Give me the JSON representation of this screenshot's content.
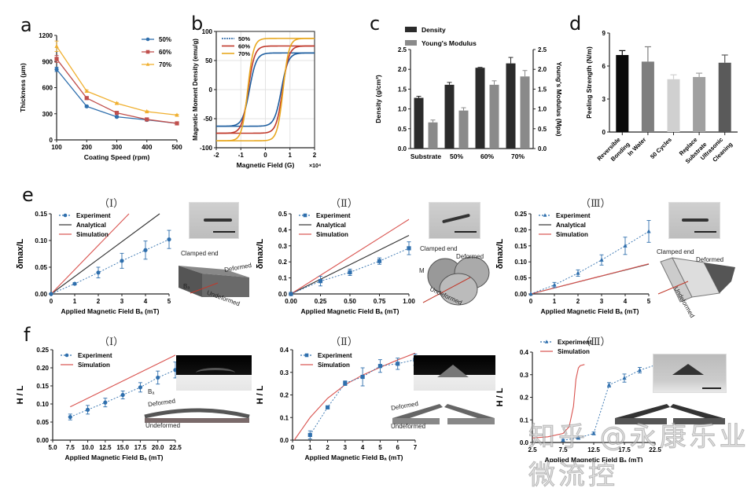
{
  "panel_labels": {
    "a": "a",
    "b": "b",
    "c": "c",
    "d": "d",
    "e": "e",
    "f": "f"
  },
  "roman": {
    "I": "（Ⅰ）",
    "II": "（Ⅱ）",
    "III": "（Ⅲ）"
  },
  "watermark": "知乎 @永康乐业微流控",
  "insets": {
    "clamped_end": "Clamped end",
    "deformed": "Deformed",
    "undeformed": "Undeformed",
    "M": "M",
    "Ba": "Bₐ",
    "delta_max": "δmax",
    "H": "H",
    "L": "L"
  },
  "chart_data": [
    {
      "id": "a",
      "type": "line",
      "title": "",
      "xlabel": "Coating Speed (rpm)",
      "ylabel": "Thickness (μm)",
      "x": [
        100,
        200,
        300,
        400,
        500
      ],
      "xlim": [
        100,
        500
      ],
      "ylim": [
        0,
        1200
      ],
      "yticks": [
        0,
        300,
        600,
        900,
        1200
      ],
      "xticks": [
        100,
        200,
        300,
        400,
        500
      ],
      "legend": "top-right",
      "series": [
        {
          "name": "50%",
          "color": "#2f6fad",
          "marker": "circle",
          "values": [
            810,
            385,
            265,
            230,
            190
          ],
          "err": [
            25,
            10,
            10,
            10,
            8
          ]
        },
        {
          "name": "60%",
          "color": "#c0504d",
          "marker": "square",
          "values": [
            930,
            480,
            310,
            235,
            190
          ],
          "err": [
            40,
            12,
            10,
            8,
            8
          ]
        },
        {
          "name": "70%",
          "color": "#f0b030",
          "marker": "triangle",
          "values": [
            1075,
            560,
            420,
            325,
            285
          ],
          "err": [
            60,
            12,
            10,
            8,
            8
          ]
        }
      ]
    },
    {
      "id": "b",
      "type": "line",
      "xlabel": "Magnetic Field (G)",
      "xexp": "×10⁴",
      "ylabel": "Magnetic Moment Density (emu/g)",
      "xlim": [
        -2,
        2
      ],
      "ylim": [
        -100,
        100
      ],
      "xticks": [
        -2,
        -1,
        0,
        1,
        2
      ],
      "yticks": [
        -100,
        -50,
        0,
        50,
        100
      ],
      "grid": true,
      "legend": "top-left",
      "series": [
        {
          "name": "50%",
          "color": "#1f5fa0",
          "Ms": 63,
          "Hc": 0.65,
          "w": 0.28
        },
        {
          "name": "60%",
          "color": "#c0392b",
          "Ms": 75,
          "Hc": 0.7,
          "w": 0.26
        },
        {
          "name": "70%",
          "color": "#e8a820",
          "Ms": 88,
          "Hc": 0.72,
          "w": 0.24
        }
      ]
    },
    {
      "id": "c",
      "type": "bar",
      "categories": [
        "Substrate",
        "50%",
        "60%",
        "70%"
      ],
      "ylabel": "Density (g/cm³)",
      "y2label": "Young's Modulus (Mpa)",
      "ylim": [
        0,
        2.5
      ],
      "yticks": [
        0.0,
        0.5,
        1.0,
        1.5,
        2.0,
        2.5
      ],
      "legend": "top-left",
      "series": [
        {
          "name": "Density",
          "color": "#2b2b2b",
          "values": [
            1.28,
            1.61,
            2.04,
            2.15
          ],
          "err": [
            0.04,
            0.06,
            0.01,
            0.15
          ]
        },
        {
          "name": "Young's Modulus",
          "color": "#8a8a8a",
          "values": [
            0.66,
            0.96,
            1.61,
            1.82
          ],
          "err": [
            0.06,
            0.07,
            0.1,
            0.15
          ]
        }
      ]
    },
    {
      "id": "d",
      "type": "bar",
      "categories": [
        "Reversible Bonding",
        "In Water",
        "50 Cycles",
        "Replace Substrate",
        "Ultrasonic Cleaning"
      ],
      "category_lines": [
        [
          "Reversible",
          "Bonding"
        ],
        [
          "In Water"
        ],
        [
          "50 Cycles"
        ],
        [
          "Replace",
          "Substrate"
        ],
        [
          "Ultrasonic",
          "Cleaning"
        ]
      ],
      "ylabel": "Peeling Strength (N/m)",
      "ylim": [
        0,
        9
      ],
      "yticks": [
        0,
        3,
        6,
        9
      ],
      "values": [
        7.0,
        6.4,
        4.8,
        5.0,
        6.3
      ],
      "err": [
        0.4,
        1.35,
        0.4,
        0.35,
        0.7
      ],
      "colors": [
        "#0a0a0a",
        "#7e7e7e",
        "#d0d0d0",
        "#a0a0a0",
        "#5a5a5a"
      ]
    },
    {
      "id": "e1",
      "type": "line",
      "xlabel": "Applied Magnetic Field Bₐ (mT)",
      "ylabel": "δmax/L",
      "xlim": [
        0,
        5
      ],
      "ylim": [
        0,
        0.15
      ],
      "xticks": [
        0,
        1,
        2,
        3,
        4,
        5
      ],
      "yticks": [
        0.0,
        0.05,
        0.1,
        0.15
      ],
      "ytick_fmt": 2,
      "legend": "top-left",
      "series": [
        {
          "name": "Experiment",
          "kind": "exp",
          "marker": "circle",
          "color": "#2f6fad",
          "x": [
            0,
            1,
            2,
            3,
            4,
            5
          ],
          "values": [
            0.0,
            0.019,
            0.04,
            0.062,
            0.082,
            0.102
          ],
          "err": [
            0,
            0.002,
            0.01,
            0.014,
            0.017,
            0.017
          ]
        },
        {
          "name": "Analytical",
          "kind": "line",
          "color": "#333333",
          "x": [
            0,
            4.6
          ],
          "values": [
            0,
            0.15
          ]
        },
        {
          "name": "Simulation",
          "kind": "line",
          "color": "#d9534f",
          "x": [
            0,
            3.3
          ],
          "values": [
            0,
            0.15
          ]
        }
      ]
    },
    {
      "id": "e2",
      "type": "line",
      "xlabel": "Applied Magnetic Field Bₐ (mT)",
      "ylabel": "δmax/L",
      "xlim": [
        0,
        1
      ],
      "ylim": [
        0,
        0.5
      ],
      "xticks": [
        0,
        0.25,
        0.5,
        0.75,
        1.0
      ],
      "xtick_fmt": 2,
      "yticks": [
        0.0,
        0.1,
        0.2,
        0.3,
        0.4,
        0.5
      ],
      "ytick_fmt": 1,
      "legend": "top-left",
      "series": [
        {
          "name": "Experiment",
          "kind": "exp",
          "marker": "square",
          "color": "#2f6fad",
          "x": [
            0,
            0.25,
            0.5,
            0.75,
            1.0
          ],
          "values": [
            0.0,
            0.08,
            0.135,
            0.205,
            0.285
          ],
          "err": [
            0,
            0.03,
            0.02,
            0.02,
            0.04
          ]
        },
        {
          "name": "Analytical",
          "kind": "line",
          "color": "#333333",
          "x": [
            0,
            1.0
          ],
          "values": [
            0,
            0.365
          ]
        },
        {
          "name": "Simulation",
          "kind": "line",
          "color": "#d9534f",
          "x": [
            0,
            1.0
          ],
          "values": [
            0,
            0.465
          ]
        }
      ]
    },
    {
      "id": "e3",
      "type": "line",
      "xlabel": "Applied Magnetic Field Bₐ (mT)",
      "ylabel": "δmax/L",
      "xlim": [
        0,
        5
      ],
      "ylim": [
        0,
        0.25
      ],
      "xticks": [
        0,
        1,
        2,
        3,
        4,
        5
      ],
      "yticks": [
        0.0,
        0.05,
        0.1,
        0.15,
        0.2,
        0.25
      ],
      "ytick_fmt": 2,
      "legend": "top-left",
      "series": [
        {
          "name": "Experiment",
          "kind": "exp",
          "marker": "triangle",
          "color": "#2f6fad",
          "x": [
            0,
            1,
            2,
            3,
            4,
            5
          ],
          "values": [
            0.0,
            0.028,
            0.065,
            0.106,
            0.15,
            0.195
          ],
          "err": [
            0,
            0.008,
            0.01,
            0.016,
            0.027,
            0.034
          ]
        },
        {
          "name": "Analytical",
          "kind": "line",
          "color": "#333333",
          "x": [
            0,
            5
          ],
          "values": [
            0,
            0.093
          ]
        },
        {
          "name": "Simulation",
          "kind": "line",
          "color": "#d9534f",
          "x": [
            0,
            5
          ],
          "values": [
            0,
            0.094
          ]
        }
      ]
    },
    {
      "id": "f1",
      "type": "line",
      "xlabel": "Applied Magnetic Field Bₐ (mT)",
      "ylabel": "H / L",
      "xlim": [
        5,
        22.5
      ],
      "ylim": [
        0,
        0.25
      ],
      "xticks": [
        5.0,
        7.5,
        10.0,
        12.5,
        15.0,
        17.5,
        20.0,
        22.5
      ],
      "xtick_fmt": 1,
      "yticks": [
        0.0,
        0.05,
        0.1,
        0.15,
        0.2,
        0.25
      ],
      "ytick_fmt": 2,
      "legend": "top-left",
      "series": [
        {
          "name": "Experiment",
          "kind": "exp",
          "marker": "circle",
          "color": "#2f6fad",
          "x": [
            7.5,
            10,
            12.5,
            15,
            17.5,
            20,
            22.5
          ],
          "values": [
            0.064,
            0.084,
            0.104,
            0.125,
            0.146,
            0.173,
            0.194
          ],
          "err": [
            0.008,
            0.012,
            0.012,
            0.011,
            0.013,
            0.018,
            0.022
          ]
        },
        {
          "name": "Simulation",
          "kind": "line",
          "color": "#d9534f",
          "x": [
            7.5,
            22.5
          ],
          "values": [
            0.092,
            0.235
          ]
        }
      ]
    },
    {
      "id": "f2",
      "type": "line",
      "xlabel": "Applied Magnetic Field Bₐ (mT)",
      "ylabel": "H / L",
      "xlim": [
        0,
        7
      ],
      "ylim": [
        0,
        0.4
      ],
      "xticks": [
        0,
        1,
        2,
        3,
        4,
        5,
        6,
        7
      ],
      "yticks": [
        0.0,
        0.1,
        0.2,
        0.3,
        0.4
      ],
      "ytick_fmt": 1,
      "legend": "top-left",
      "series": [
        {
          "name": "Experiment",
          "kind": "exp",
          "marker": "square",
          "color": "#2f6fad",
          "x": [
            1,
            2,
            3,
            4,
            5,
            6,
            7
          ],
          "values": [
            0.023,
            0.145,
            0.252,
            0.28,
            0.328,
            0.338,
            0.356
          ],
          "err": [
            0.018,
            0.005,
            0.01,
            0.04,
            0.028,
            0.025,
            0.025
          ]
        },
        {
          "name": "Simulation",
          "kind": "curve",
          "color": "#d9534f",
          "x": [
            0.1,
            1,
            2,
            3,
            4,
            5,
            6,
            7
          ],
          "values": [
            0.0,
            0.1,
            0.185,
            0.245,
            0.288,
            0.322,
            0.355,
            0.385
          ]
        }
      ]
    },
    {
      "id": "f3",
      "type": "line",
      "xlabel": "Applied Magnetic Field Bₐ (mT)",
      "ylabel": "H / L",
      "xlim": [
        2.5,
        22.5
      ],
      "ylim": [
        0,
        0.4
      ],
      "xticks": [
        2.5,
        7.5,
        12.5,
        17.5,
        22.5
      ],
      "xtick_fmt": 1,
      "yticks": [
        0,
        0.1,
        0.2,
        0.3,
        0.4
      ],
      "ytick_fmt": 1,
      "legend": "top-left",
      "series": [
        {
          "name": "Experiment",
          "kind": "exp",
          "marker": "triangle",
          "color": "#2f6fad",
          "x": [
            7.5,
            10,
            12.5,
            15,
            17.5,
            20,
            22.5
          ],
          "values": [
            0.01,
            0.02,
            0.04,
            0.255,
            0.285,
            0.32,
            0.342
          ],
          "err": [
            0.004,
            0.004,
            0.006,
            0.01,
            0.018,
            0.012,
            0.012
          ]
        },
        {
          "name": "Simulation",
          "kind": "curve",
          "color": "#d9534f",
          "x": [
            2.5,
            5,
            7.5,
            8.5,
            9.2,
            9.6,
            10,
            10.3,
            11
          ],
          "values": [
            0.02,
            0.025,
            0.04,
            0.07,
            0.16,
            0.28,
            0.33,
            0.34,
            0.345
          ]
        }
      ]
    }
  ]
}
